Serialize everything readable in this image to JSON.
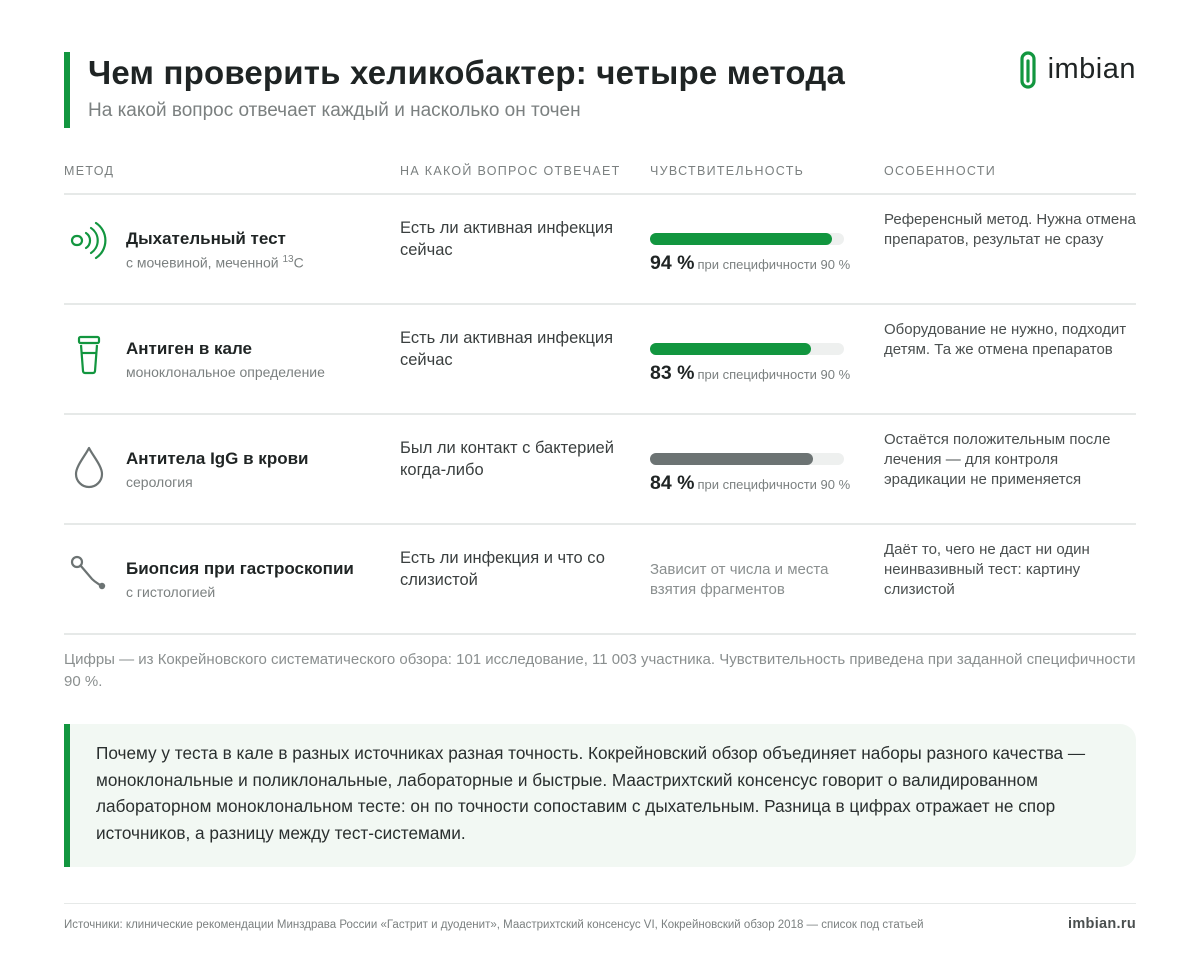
{
  "header": {
    "title": "Чем проверить хеликобактер: четыре метода",
    "subtitle": "На какой вопрос отвечает каждый и насколько он точен",
    "logo_text": "imbian",
    "accent_color": "#12963f"
  },
  "table": {
    "columns": [
      "Метод",
      "На какой вопрос отвечает",
      "Чувствительность",
      "Особенности"
    ],
    "rows": [
      {
        "icon": "breath-waves-icon",
        "method": "Дыхательный тест",
        "method_sub": "с мочевиной, меченной ",
        "method_sub_sup": "13",
        "method_sub_tail": "С",
        "question": "Есть ли активная инфекция сейчас",
        "sensitivity_value": "94 %",
        "sensitivity_note": "при специфичности 90 %",
        "bar_level": 94,
        "bar_color": "#12963f",
        "features": "Референсный метод. Нужна отмена препаратов, результат не сразу"
      },
      {
        "icon": "stool-container-icon",
        "method": "Антиген в кале",
        "method_sub": "моноклональное определение",
        "question": "Есть ли активная инфекция сейчас",
        "sensitivity_value": "83 %",
        "sensitivity_note": "при специфичности 90 %",
        "bar_level": 83,
        "bar_color": "#12963f",
        "features": "Оборудование не нужно, подходит детям. Та же отмена препаратов"
      },
      {
        "icon": "blood-drop-icon",
        "method": "Антитела IgG в крови",
        "method_sub": "серология",
        "question": "Был ли контакт с бактерией когда-либо",
        "sensitivity_value": "84 %",
        "sensitivity_note": "при специфичности 90 %",
        "bar_level": 84,
        "bar_color": "#6c7373",
        "features": "Остаётся положительным после лечения — для контроля эрадикации не применяется"
      },
      {
        "icon": "endoscope-probe-icon",
        "method": "Биопсия при гастроскопии",
        "method_sub": "с гистологией",
        "question": "Есть ли инфекция и что со слизистой",
        "sensitivity_text": "Зависит от числа и места взятия фрагментов",
        "features": "Даёт то, чего не даст ни один неинвазивный тест: картину слизистой"
      }
    ]
  },
  "footnote": "Цифры — из Кокрейновского систематического обзора: 101 исследование, 11 003 участника. Чувствительность приведена при заданной специфичности 90 %.",
  "callout": "Почему у теста в кале в разных источниках разная точность. Кокрейновский обзор объединяет наборы разного качества — моноклональные и поликлональные, лабораторные и быстрые. Маастрихтский консенсус говорит о валидированном лабораторном моноклональном тесте: он по точности сопоставим с дыхательным. Разница в цифрах отражает не спор источников, а разницу между тест-системами.",
  "footer": {
    "sources": "Источники: клинические рекомендации Минздрава России «Гастрит и дуоденит», Маастрихтский консенсус VI, Кокрейновский обзор 2018 — список под статьей",
    "site": "imbian.ru"
  }
}
